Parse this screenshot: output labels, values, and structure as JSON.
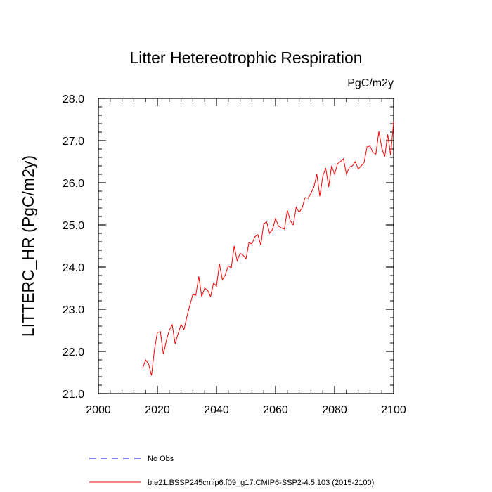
{
  "chart_data": {
    "type": "line",
    "title": "Litter Hetereotrophic Respiration",
    "units": "PgC/m2y",
    "xlabel": "",
    "ylabel": "LITTERC_HR  (PgC/m2y)",
    "xlim": [
      2000,
      2100
    ],
    "ylim": [
      21.0,
      28.0
    ],
    "x_ticks": [
      2000,
      2020,
      2040,
      2060,
      2080,
      2100
    ],
    "x_tick_labels": [
      "2000",
      "2020",
      "2040",
      "2060",
      "2080",
      "2100"
    ],
    "y_ticks": [
      21.0,
      22.0,
      23.0,
      24.0,
      25.0,
      26.0,
      27.0,
      28.0
    ],
    "y_tick_labels": [
      "21.0",
      "22.0",
      "23.0",
      "24.0",
      "25.0",
      "26.0",
      "27.0",
      "28.0"
    ],
    "grid": false,
    "legend_position": "bottom",
    "series": [
      {
        "name": "b.e21.BSSP245cmip6.f09_g17.CMIP6-SSP2-4.5.103 (2015-2100)",
        "color": "#ff0000",
        "dash": "solid",
        "x": [
          2015,
          2016,
          2017,
          2018,
          2019,
          2020,
          2021,
          2022,
          2023,
          2024,
          2025,
          2026,
          2027,
          2028,
          2029,
          2030,
          2031,
          2032,
          2033,
          2034,
          2035,
          2036,
          2037,
          2038,
          2039,
          2040,
          2041,
          2042,
          2043,
          2044,
          2045,
          2046,
          2047,
          2048,
          2049,
          2050,
          2051,
          2052,
          2053,
          2054,
          2055,
          2056,
          2057,
          2058,
          2059,
          2060,
          2061,
          2062,
          2063,
          2064,
          2065,
          2066,
          2067,
          2068,
          2069,
          2070,
          2071,
          2072,
          2073,
          2074,
          2075,
          2076,
          2077,
          2078,
          2079,
          2080,
          2081,
          2082,
          2083,
          2084,
          2085,
          2086,
          2087,
          2088,
          2089,
          2090,
          2091,
          2092,
          2093,
          2094,
          2095,
          2096,
          2097,
          2098,
          2099,
          2100
        ],
        "values": [
          21.6,
          21.8,
          21.7,
          21.43,
          22.05,
          22.45,
          22.47,
          21.93,
          22.25,
          22.5,
          22.63,
          22.18,
          22.42,
          22.64,
          22.52,
          22.83,
          23.1,
          23.35,
          23.33,
          23.78,
          23.3,
          23.5,
          23.45,
          23.3,
          23.62,
          23.55,
          24.07,
          23.7,
          23.82,
          24.03,
          23.98,
          24.5,
          24.15,
          24.33,
          24.28,
          24.2,
          24.58,
          24.55,
          24.72,
          24.77,
          24.52,
          25.03,
          25.07,
          24.8,
          24.9,
          25.15,
          24.97,
          24.93,
          24.9,
          25.35,
          25.1,
          25.0,
          25.42,
          25.3,
          25.4,
          25.65,
          25.63,
          25.75,
          25.9,
          26.2,
          25.68,
          26.15,
          26.35,
          25.9,
          26.4,
          26.2,
          26.45,
          26.5,
          26.57,
          26.2,
          26.37,
          26.4,
          26.5,
          26.33,
          26.4,
          26.48,
          26.85,
          26.87,
          26.72,
          26.68,
          27.22,
          26.82,
          26.62,
          27.15,
          26.65,
          27.45
        ]
      },
      {
        "name": "No Obs",
        "color": "#0000ff",
        "dash": "dashed",
        "x": [],
        "values": []
      }
    ]
  }
}
